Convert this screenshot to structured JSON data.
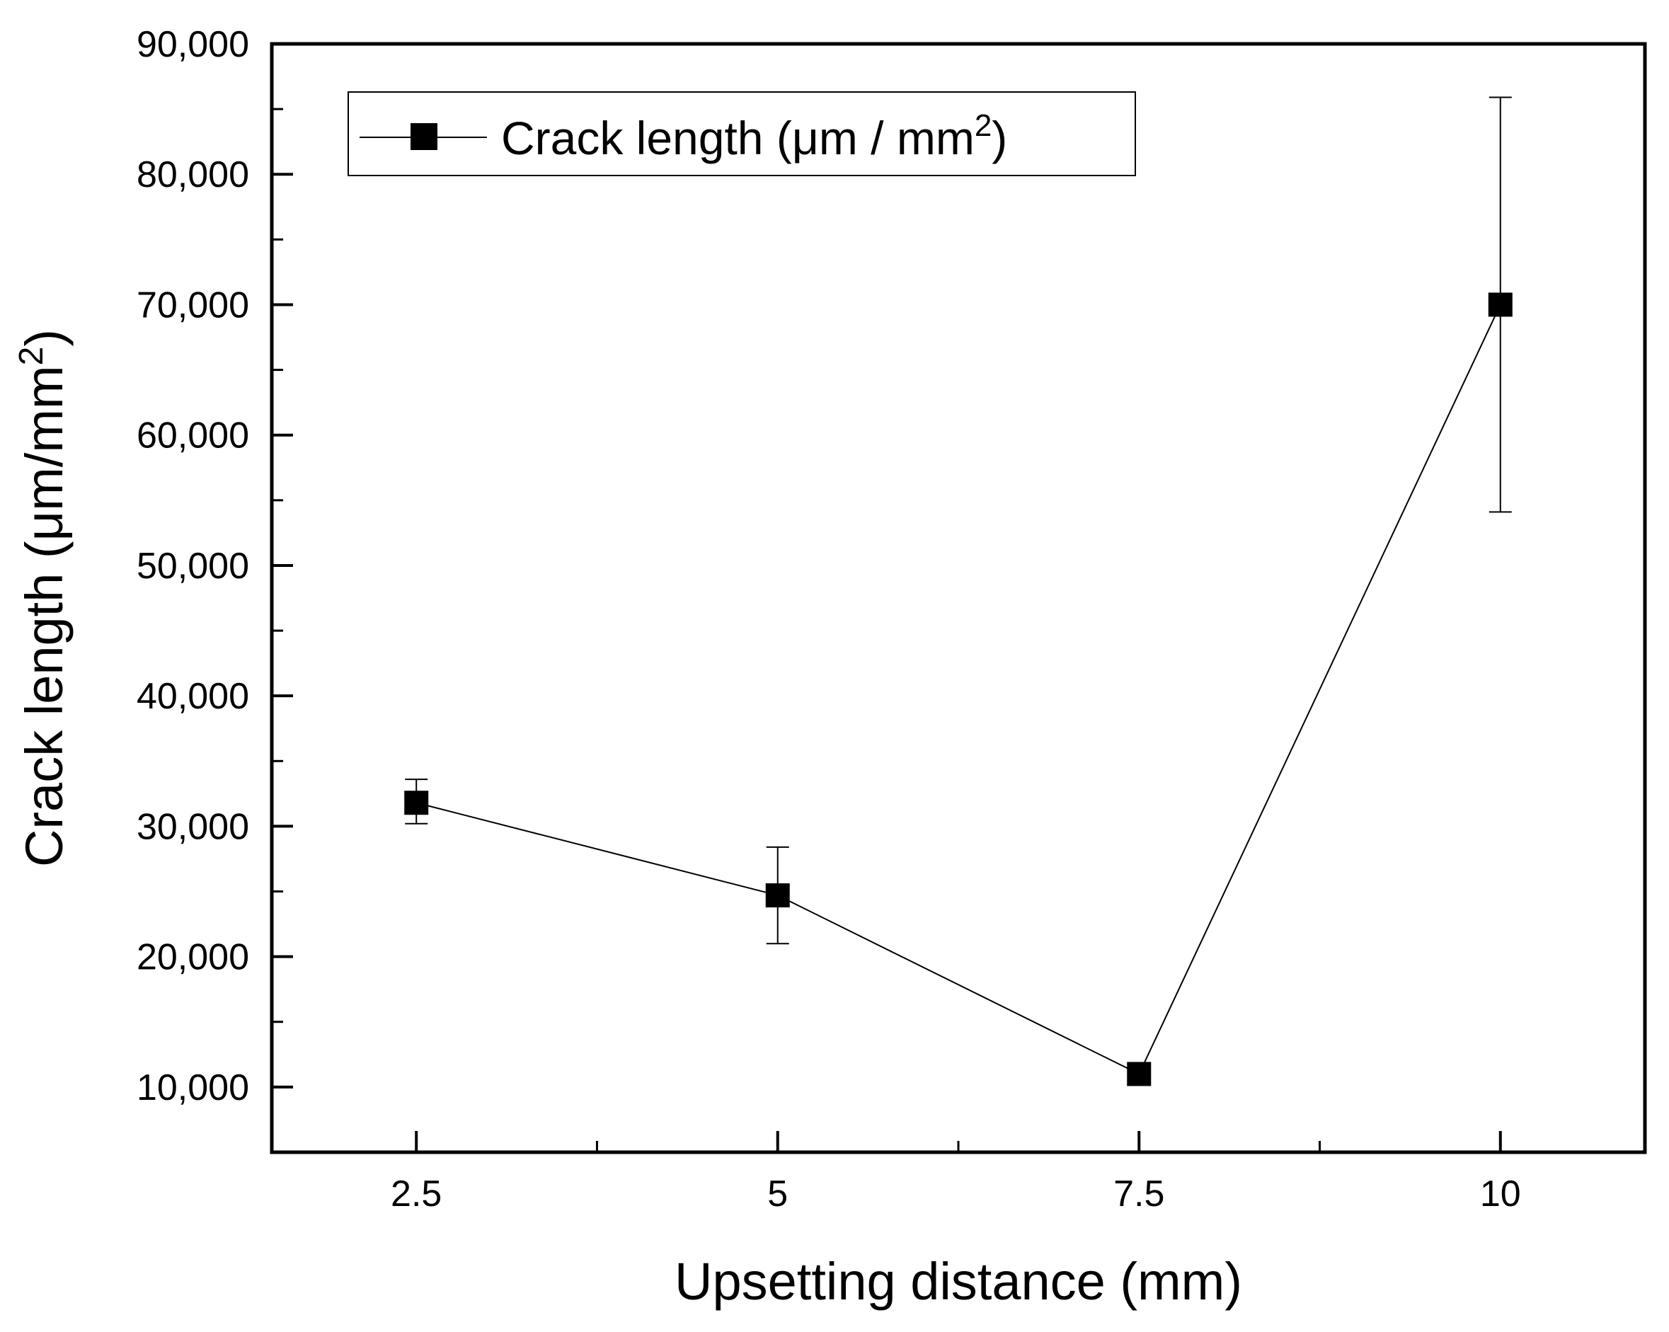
{
  "chart_data": {
    "type": "line",
    "title": "",
    "xlabel": "Upsetting distance (mm)",
    "ylabel": {
      "prefix": "Crack length (μm/mm",
      "sup": "2",
      "suffix": ")"
    },
    "x_ticks": [
      2.5,
      5,
      7.5,
      10
    ],
    "x_tick_labels": [
      "2.5",
      "5",
      "7.5",
      "10"
    ],
    "y_ticks": [
      10000,
      20000,
      30000,
      40000,
      50000,
      60000,
      70000,
      80000,
      90000
    ],
    "y_tick_labels": [
      "10,000",
      "20,000",
      "30,000",
      "40,000",
      "50,000",
      "60,000",
      "70,000",
      "80,000",
      "90,000"
    ],
    "xlim": [
      1.5,
      11
    ],
    "ylim": [
      5000,
      90000
    ],
    "grid": false,
    "legend": {
      "placement": "top-left",
      "label": {
        "prefix": "Crack length (μm / mm",
        "sup": "2",
        "suffix": ")"
      }
    },
    "series": [
      {
        "name": "Crack length (μm / mm2)",
        "x": [
          2.5,
          5,
          7.5,
          10
        ],
        "y": [
          31800,
          24700,
          11000,
          70000
        ],
        "error_low": [
          30200,
          21000,
          11000,
          54100
        ],
        "error_high": [
          33600,
          28400,
          11000,
          85900
        ],
        "color": "#000000",
        "marker": "square"
      }
    ]
  }
}
